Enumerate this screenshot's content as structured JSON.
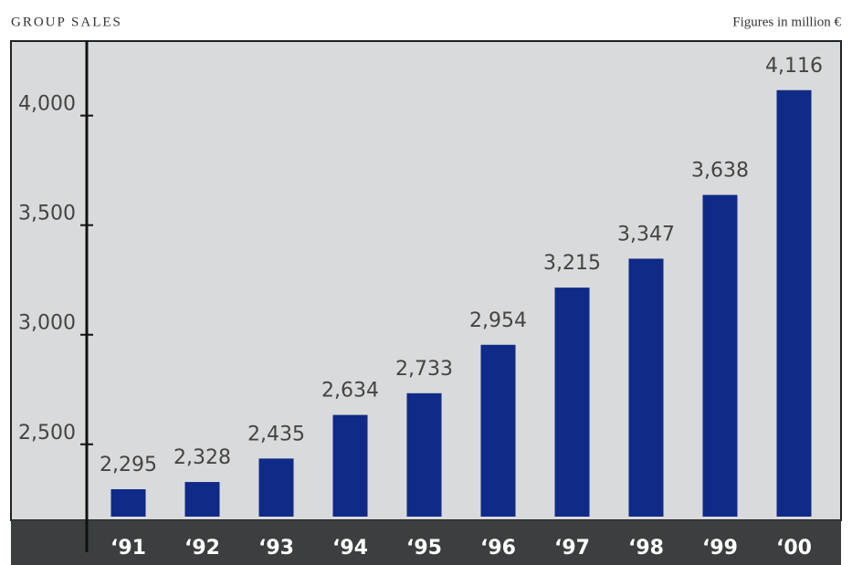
{
  "chart_data": {
    "type": "bar",
    "title": "GROUP SALES",
    "subtitle": "Figures in million €",
    "categories": [
      "‘91",
      "‘92",
      "‘93",
      "‘94",
      "‘95",
      "‘96",
      "‘97",
      "‘98",
      "‘99",
      "‘00"
    ],
    "values": [
      2295,
      2328,
      2435,
      2634,
      2733,
      2954,
      3215,
      3347,
      3638,
      4116
    ],
    "value_labels": [
      "2,295",
      "2,328",
      "2,435",
      "2,634",
      "2,733",
      "2,954",
      "3,215",
      "3,347",
      "3,638",
      "4,116"
    ],
    "color": "#0f2a87",
    "ylim": [
      2170,
      4340
    ],
    "yticks": [
      {
        "value": 2500,
        "label": "2,500"
      },
      {
        "value": 3000,
        "label": "3,000"
      },
      {
        "value": 3500,
        "label": "3,500"
      },
      {
        "value": 4000,
        "label": "4,000"
      }
    ]
  }
}
